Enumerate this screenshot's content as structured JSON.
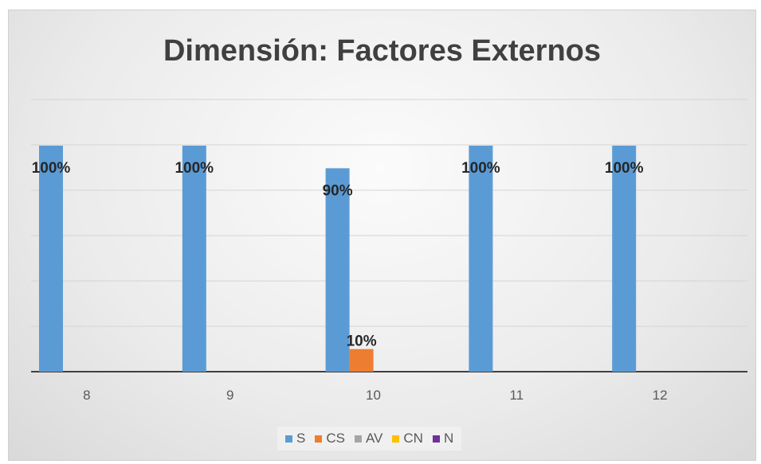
{
  "chart_data": {
    "type": "bar",
    "title": "Dimensión: Factores Externos",
    "xlabel": "",
    "ylabel": "",
    "categories": [
      "8",
      "9",
      "10",
      "11",
      "12"
    ],
    "series": [
      {
        "name": "S",
        "color": "#5b9bd5",
        "values": [
          100,
          100,
          90,
          100,
          100
        ],
        "labels": [
          "100%",
          "100%",
          "90%",
          "100%",
          "100%"
        ]
      },
      {
        "name": "CS",
        "color": "#ed7d31",
        "values": [
          0,
          0,
          10,
          0,
          0
        ],
        "labels": [
          "",
          "",
          "10%",
          "",
          ""
        ]
      },
      {
        "name": "AV",
        "color": "#a5a5a5",
        "values": [
          0,
          0,
          0,
          0,
          0
        ],
        "labels": [
          "",
          "",
          "",
          "",
          ""
        ]
      },
      {
        "name": "CN",
        "color": "#ffc000",
        "values": [
          0,
          0,
          0,
          0,
          0
        ],
        "labels": [
          "",
          "",
          "",
          "",
          ""
        ]
      },
      {
        "name": "N",
        "color": "#7030a0",
        "values": [
          0,
          0,
          0,
          0,
          0
        ],
        "labels": [
          "",
          "",
          "",
          "",
          ""
        ]
      }
    ],
    "ylim": [
      0,
      100
    ],
    "grid": true,
    "legend_position": "bottom"
  }
}
